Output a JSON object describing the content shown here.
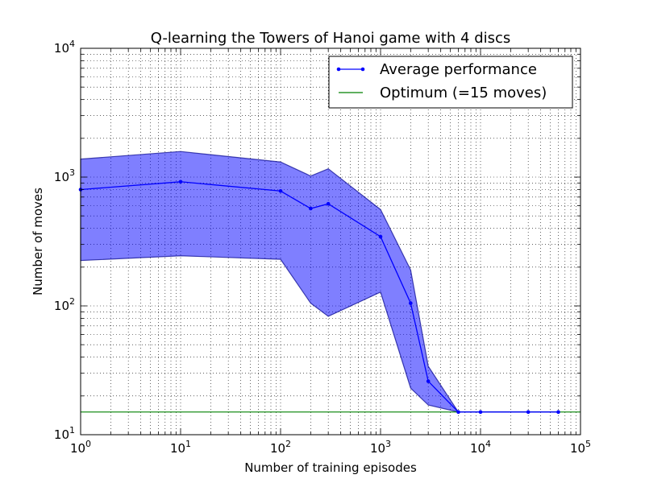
{
  "chart_data": {
    "type": "line",
    "title": "Q-learning the Towers of Hanoi game with 4 discs",
    "xlabel": "Number of training episodes",
    "ylabel": "Number of moves",
    "xscale": "log",
    "yscale": "log",
    "xlim": [
      1,
      100000
    ],
    "ylim": [
      10,
      10000
    ],
    "x_ticks": [
      {
        "base": "10",
        "exp": "0"
      },
      {
        "base": "10",
        "exp": "1"
      },
      {
        "base": "10",
        "exp": "2"
      },
      {
        "base": "10",
        "exp": "3"
      },
      {
        "base": "10",
        "exp": "4"
      },
      {
        "base": "10",
        "exp": "5"
      }
    ],
    "y_ticks": [
      {
        "base": "10",
        "exp": "1"
      },
      {
        "base": "10",
        "exp": "2"
      },
      {
        "base": "10",
        "exp": "3"
      },
      {
        "base": "10",
        "exp": "4"
      }
    ],
    "grid": true,
    "legend_position": "top-right",
    "series": [
      {
        "name": "Average performance",
        "color": "#0000ff",
        "x": [
          1,
          10,
          100,
          200,
          300,
          1000,
          2000,
          3000,
          6000,
          10000,
          30000,
          60000
        ],
        "y": [
          800,
          920,
          780,
          570,
          620,
          345,
          105,
          26,
          15,
          15,
          15,
          15
        ],
        "band_upper": [
          1380,
          1580,
          1310,
          1020,
          1160,
          560,
          190,
          34,
          15,
          15,
          15,
          15
        ],
        "band_lower": [
          225,
          245,
          230,
          105,
          83,
          128,
          23,
          17,
          15,
          15,
          15,
          15
        ],
        "band_color": "#0000ff"
      },
      {
        "name": "Optimum (=15 moves)",
        "color": "#008000",
        "type": "hline",
        "y": 15
      }
    ]
  }
}
